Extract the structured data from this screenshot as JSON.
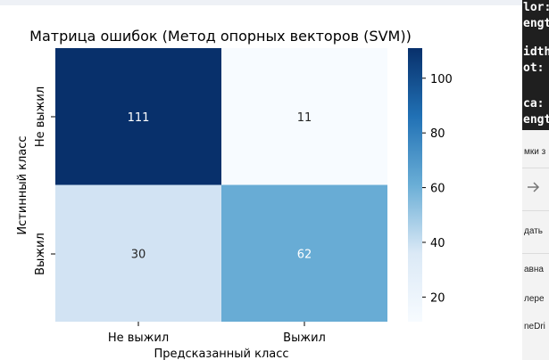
{
  "chart_data": {
    "type": "heatmap",
    "title": "Матрица ошибок (Метод опорных векторов (SVM))",
    "xlabel": "Предсказанный класс",
    "ylabel": "Истинный класс",
    "x_categories": [
      "Не выжил",
      "Выжил"
    ],
    "y_categories": [
      "Не выжил",
      "Выжил"
    ],
    "values": [
      [
        111,
        11
      ],
      [
        30,
        62
      ]
    ],
    "colormap": "Blues",
    "color_range": [
      11,
      111
    ],
    "colorbar_ticks": [
      20,
      40,
      60,
      80,
      100
    ]
  },
  "side_panel": {
    "code_lines": [
      "lor:",
      "ength",
      "idth",
      "ot:",
      "ca:",
      "ength"
    ],
    "items": [
      "мки з",
      "дать",
      "авна",
      "лере",
      "neDri"
    ]
  }
}
